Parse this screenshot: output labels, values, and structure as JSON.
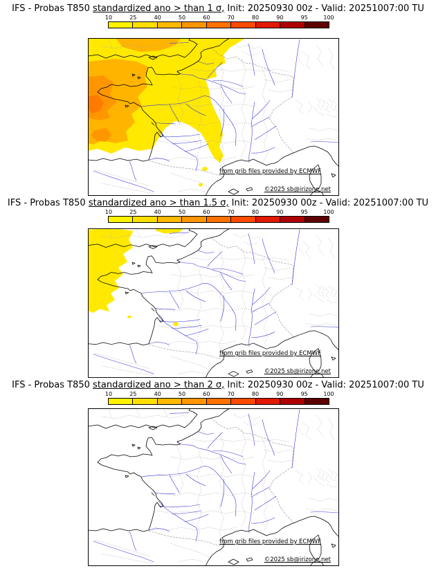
{
  "colorbar": {
    "ticks": [
      "10",
      "25",
      "40",
      "50",
      "60",
      "70",
      "80",
      "90",
      "95",
      "100"
    ],
    "segments": [
      "#fff200",
      "#ffdf00",
      "#ffb900",
      "#ff9500",
      "#ff7200",
      "#ff4a00",
      "#e31800",
      "#ae0000",
      "#5e0000"
    ]
  },
  "shading": {
    "lv1": "#ffe900",
    "lv2": "#ffb400",
    "lv3": "#ff9600",
    "lv4": "#ff7a00"
  },
  "panels": [
    {
      "title_prefix": "IFS - Probas T850  ",
      "title_underline": "standardized ano > than 1 σ,",
      "title_suffix": " Init: 20250930 00z - Valid: 20251007:00 TU",
      "credit": "from grib files provided by ECMWF",
      "copyright": "©2025 sb@irizone.net"
    },
    {
      "title_prefix": "IFS - Probas T850  ",
      "title_underline": "standardized ano > than 1.5 σ,",
      "title_suffix": " Init: 20250930 00z - Valid: 20251007:00 TU",
      "credit": "from grib files provided by ECMWF",
      "copyright": "©2025 sb@irizone.net"
    },
    {
      "title_prefix": "IFS - Probas T850  ",
      "title_underline": "standardized ano > than 2 σ,",
      "title_suffix": " Init: 20250930 00z - Valid: 20251007:00 TU",
      "credit": "from grib files provided by ECMWF",
      "copyright": "©2025 sb@irizone.net"
    }
  ]
}
